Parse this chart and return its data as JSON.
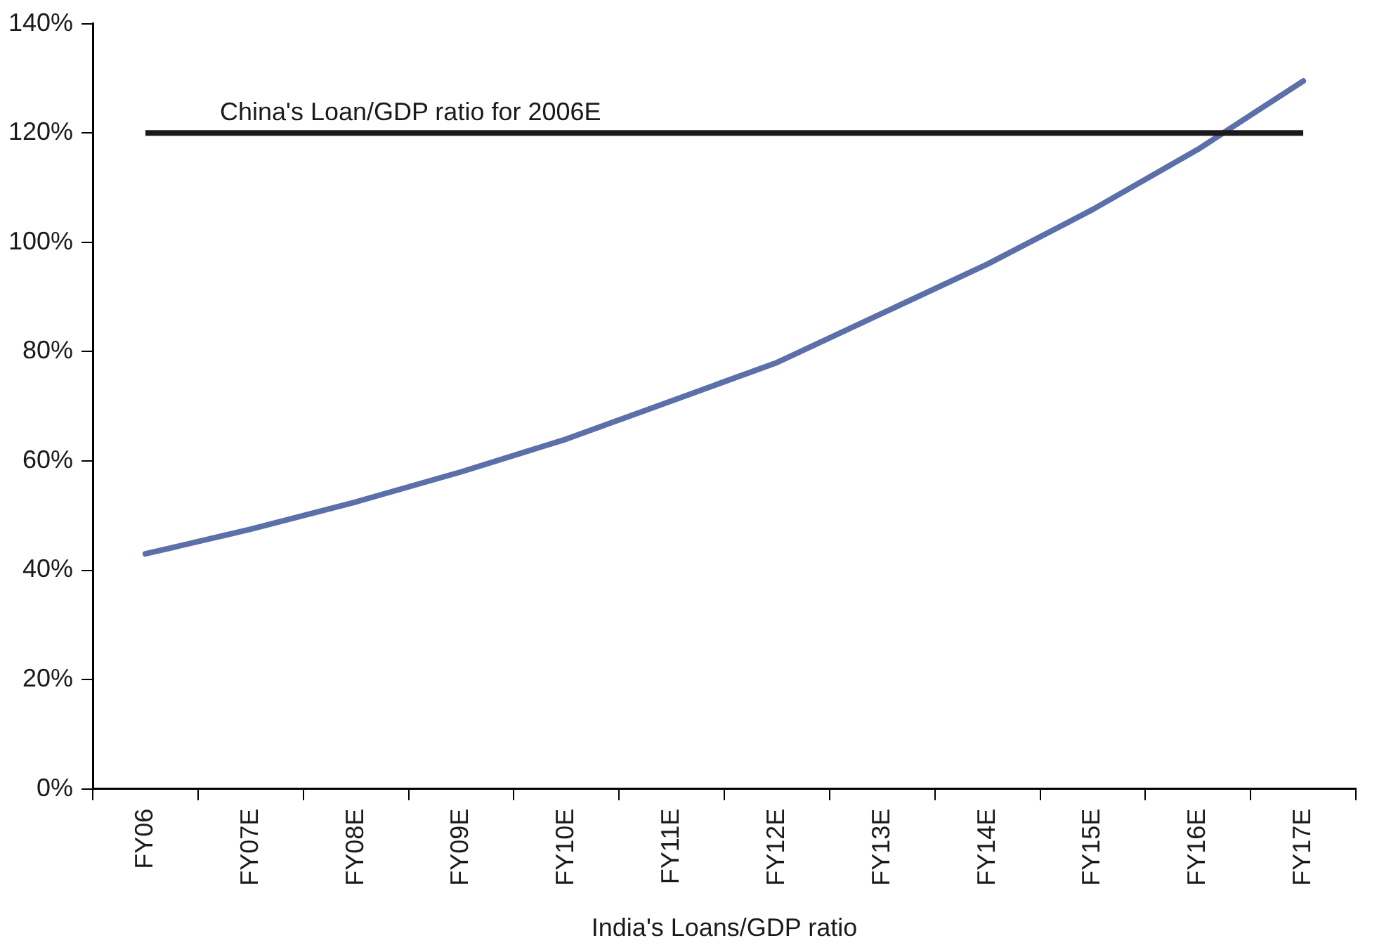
{
  "chart_data": {
    "type": "line",
    "xlabel": "India's Loans/GDP ratio",
    "categories": [
      "FY06",
      "FY07E",
      "FY08E",
      "FY09E",
      "FY10E",
      "FY11E",
      "FY12E",
      "FY13E",
      "FY14E",
      "FY15E",
      "FY16E",
      "FY17E"
    ],
    "series": [
      {
        "color": "#5b6fa8",
        "values": [
          43,
          47.5,
          52.5,
          58,
          64,
          71,
          78,
          87,
          96,
          106,
          117,
          129.5
        ]
      }
    ],
    "ylim": [
      0,
      140
    ],
    "yticks": [
      {
        "value": 0,
        "label": "0%"
      },
      {
        "value": 20,
        "label": "20%"
      },
      {
        "value": 40,
        "label": "40%"
      },
      {
        "value": 60,
        "label": "60%"
      },
      {
        "value": 80,
        "label": "80%"
      },
      {
        "value": 100,
        "label": "100%"
      },
      {
        "value": 120,
        "label": "120%"
      },
      {
        "value": 140,
        "label": "140%"
      }
    ],
    "ref_lines": [
      {
        "axis": "y",
        "value": 120,
        "label": "China's Loan/GDP ratio for 2006E",
        "color": "#1a1a1a"
      }
    ],
    "grid": false,
    "legend": false,
    "marker": "none",
    "line_style": "solid"
  }
}
